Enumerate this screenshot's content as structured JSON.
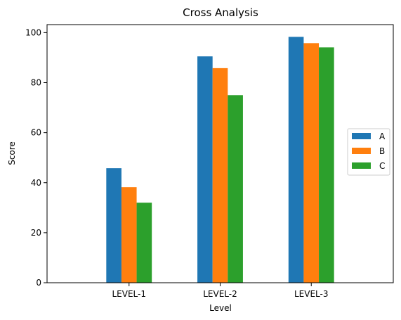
{
  "chart_data": {
    "type": "bar",
    "title": "Cross Analysis",
    "xlabel": "Level",
    "ylabel": "Score",
    "categories": [
      "LEVEL-1",
      "LEVEL-2",
      "LEVEL-3"
    ],
    "series": [
      {
        "name": "A",
        "color": "#1f77b4",
        "values": [
          45.8,
          90.5,
          98.3
        ]
      },
      {
        "name": "B",
        "color": "#ff7f0e",
        "values": [
          38.2,
          85.8,
          95.8
        ]
      },
      {
        "name": "C",
        "color": "#2ca02c",
        "values": [
          32.0,
          75.0,
          94.1
        ]
      }
    ],
    "ylim": [
      0,
      103.2
    ],
    "yticks": [
      0,
      20,
      40,
      60,
      80,
      100
    ],
    "grid": false,
    "legend_position": "center-right"
  }
}
